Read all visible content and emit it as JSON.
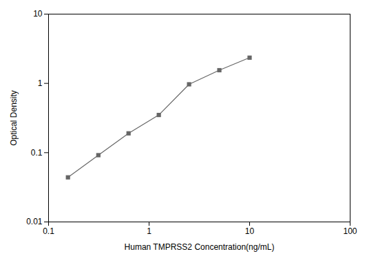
{
  "chart_data": {
    "type": "line",
    "xlabel": "Human TMPRSS2 Concentration(ng/mL)",
    "ylabel": "Optical Density",
    "x": [
      0.156,
      0.313,
      0.625,
      1.25,
      2.5,
      5.0,
      10.0
    ],
    "values": [
      0.044,
      0.092,
      0.19,
      0.35,
      0.97,
      1.55,
      2.35
    ],
    "xlim": [
      0.1,
      100
    ],
    "ylim": [
      0.01,
      10
    ],
    "xticks": [
      0.1,
      1,
      10,
      100
    ],
    "yticks": [
      0.01,
      0.1,
      1,
      10
    ],
    "log": true,
    "grid": false,
    "color": "#666666",
    "marker": "square"
  }
}
